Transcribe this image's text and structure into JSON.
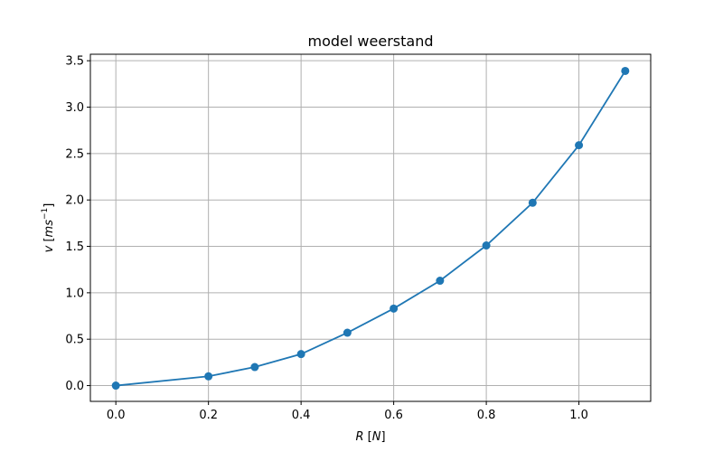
{
  "chart_data": {
    "type": "line",
    "title": "model weerstand",
    "xlabel": "R [N]",
    "ylabel": "v [ms^-1]",
    "xlim": [
      -0.055,
      1.155
    ],
    "ylim": [
      -0.17,
      3.57
    ],
    "xticks": [
      0.0,
      0.2,
      0.4,
      0.6,
      0.8,
      1.0
    ],
    "xtick_labels": [
      "0.0",
      "0.2",
      "0.4",
      "0.6",
      "0.8",
      "1.0"
    ],
    "yticks": [
      0.0,
      0.5,
      1.0,
      1.5,
      2.0,
      2.5,
      3.0,
      3.5
    ],
    "ytick_labels": [
      "0.0",
      "0.5",
      "1.0",
      "1.5",
      "2.0",
      "2.5",
      "3.0",
      "3.5"
    ],
    "grid": true,
    "markers": "circle",
    "series": [
      {
        "color": "#1f77b4",
        "x": [
          0.0,
          0.2,
          0.3,
          0.4,
          0.5,
          0.6,
          0.7,
          0.8,
          0.9,
          1.0,
          1.1
        ],
        "y": [
          0.0,
          0.1,
          0.2,
          0.34,
          0.57,
          0.83,
          1.13,
          1.51,
          1.97,
          2.59,
          3.39
        ]
      }
    ]
  }
}
